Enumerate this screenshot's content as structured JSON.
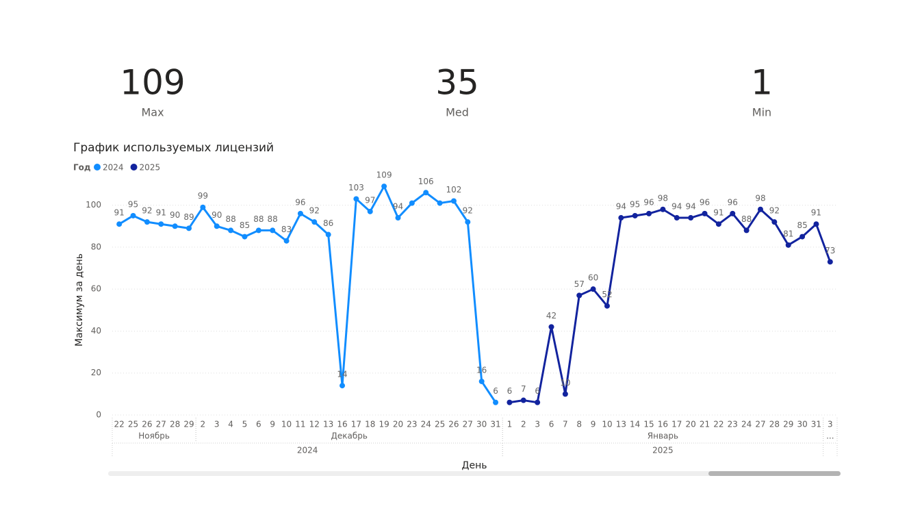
{
  "cards": [
    {
      "value": 109,
      "label": "Max"
    },
    {
      "value": 35,
      "label": "Med"
    },
    {
      "value": 1,
      "label": "Min"
    }
  ],
  "chart_data": {
    "type": "line",
    "title": "График используемых лицензий",
    "legend_title": "Год",
    "x_label": "День",
    "y_label": "Максимум за день",
    "categories": [
      "22",
      "25",
      "26",
      "27",
      "28",
      "29",
      "2",
      "3",
      "4",
      "5",
      "6",
      "9",
      "10",
      "11",
      "12",
      "13",
      "16",
      "17",
      "18",
      "19",
      "20",
      "23",
      "24",
      "25",
      "26",
      "27",
      "30",
      "31",
      "1",
      "2",
      "3",
      "6",
      "7",
      "8",
      "9",
      "10",
      "13",
      "14",
      "15",
      "16",
      "17",
      "20",
      "21",
      "22",
      "23",
      "24",
      "27",
      "28",
      "29",
      "30",
      "31",
      "3"
    ],
    "month_groups": [
      {
        "label": "Ноябрь",
        "size": 6
      },
      {
        "label": "Декабрь",
        "size": 22
      },
      {
        "label": "Январь",
        "size": 23
      },
      {
        "label": "...",
        "size": 1
      }
    ],
    "year_groups": [
      {
        "label": "2024",
        "size": 28
      },
      {
        "label": "2025",
        "size": 23
      }
    ],
    "series": [
      {
        "name": "2024",
        "color": "#118dff",
        "values": [
          91,
          95,
          92,
          91,
          90,
          89,
          99,
          90,
          88,
          85,
          88,
          88,
          83,
          96,
          92,
          86,
          14,
          103,
          97,
          109,
          94,
          101,
          106,
          101,
          102,
          92,
          16,
          6,
          null,
          null,
          null,
          null,
          null,
          null,
          null,
          null,
          null,
          null,
          null,
          null,
          null,
          null,
          null,
          null,
          null,
          null,
          null,
          null,
          null,
          null,
          null,
          null
        ],
        "value_labels": [
          91,
          95,
          92,
          91,
          90,
          89,
          99,
          90,
          88,
          85,
          88,
          88,
          83,
          96,
          92,
          86,
          14,
          103,
          97,
          109,
          94,
          null,
          106,
          null,
          102,
          92,
          16,
          6,
          null,
          null,
          null,
          null,
          null,
          null,
          null,
          null,
          null,
          null,
          null,
          null,
          null,
          null,
          null,
          null,
          null,
          null,
          null,
          null,
          null,
          null,
          null,
          null
        ]
      },
      {
        "name": "2025",
        "color": "#12239e",
        "values": [
          null,
          null,
          null,
          null,
          null,
          null,
          null,
          null,
          null,
          null,
          null,
          null,
          null,
          null,
          null,
          null,
          null,
          null,
          null,
          null,
          null,
          null,
          null,
          null,
          null,
          null,
          null,
          null,
          6,
          7,
          6,
          42,
          10,
          57,
          60,
          52,
          94,
          95,
          96,
          98,
          94,
          94,
          96,
          91,
          96,
          88,
          98,
          92,
          81,
          85,
          91,
          73
        ],
        "value_labels": [
          null,
          null,
          null,
          null,
          null,
          null,
          null,
          null,
          null,
          null,
          null,
          null,
          null,
          null,
          null,
          null,
          null,
          null,
          null,
          null,
          null,
          null,
          null,
          null,
          null,
          null,
          null,
          null,
          6,
          7,
          6,
          42,
          10,
          57,
          60,
          52,
          94,
          95,
          96,
          98,
          94,
          94,
          96,
          91,
          96,
          88,
          98,
          92,
          81,
          85,
          91,
          73
        ]
      }
    ],
    "ylim": [
      0,
      110
    ],
    "yticks": [
      0,
      20,
      40,
      60,
      80,
      100
    ],
    "grid": true
  }
}
